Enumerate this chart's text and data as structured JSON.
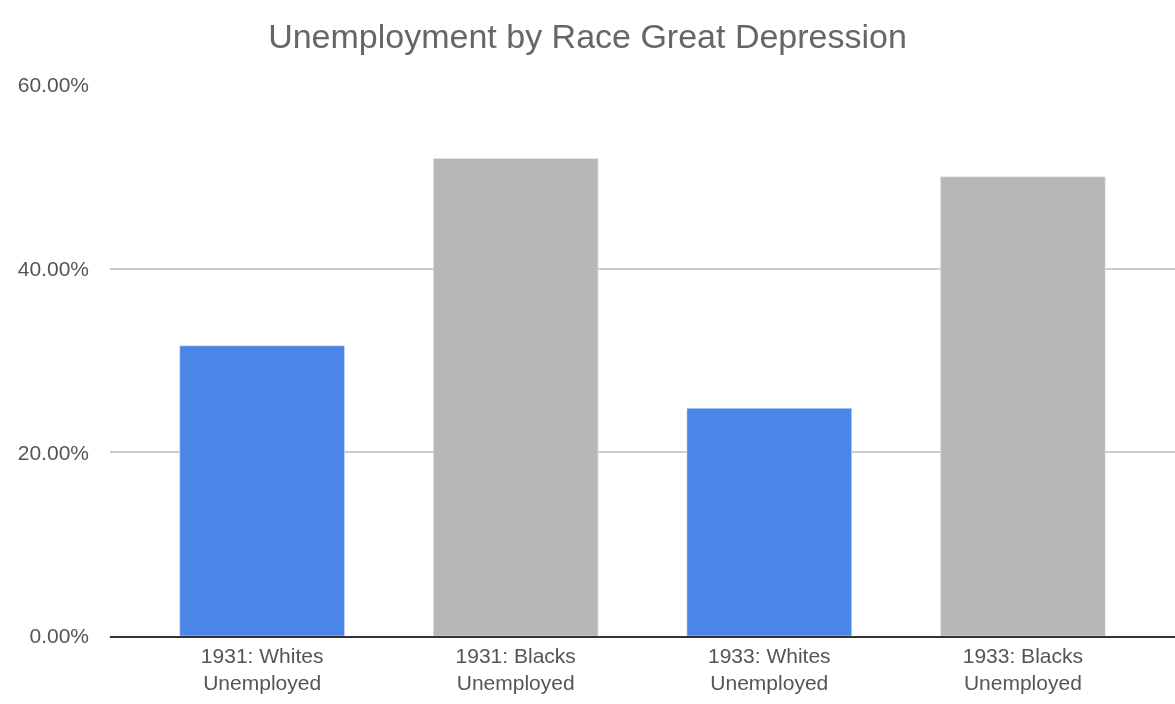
{
  "chart_data": {
    "type": "bar",
    "title": "Unemployment by Race Great Depression",
    "categories": [
      "1931: Whites\nUnemployed",
      "1931: Blacks\nUnemployed",
      "1933: Whites\nUnemployed",
      "1933: Blacks\nUnemployed"
    ],
    "values": [
      31.6,
      52.0,
      24.8,
      50.0
    ],
    "colors": [
      "#4a86e8",
      "#b7b7b7",
      "#4a86e8",
      "#b7b7b7"
    ],
    "ylim": [
      0,
      60
    ],
    "yticks": [
      {
        "value": 0,
        "label": "0.00%"
      },
      {
        "value": 20,
        "label": "20.00%"
      },
      {
        "value": 40,
        "label": "40.00%"
      },
      {
        "value": 60,
        "label": "60.00%"
      }
    ],
    "grid": "y"
  }
}
